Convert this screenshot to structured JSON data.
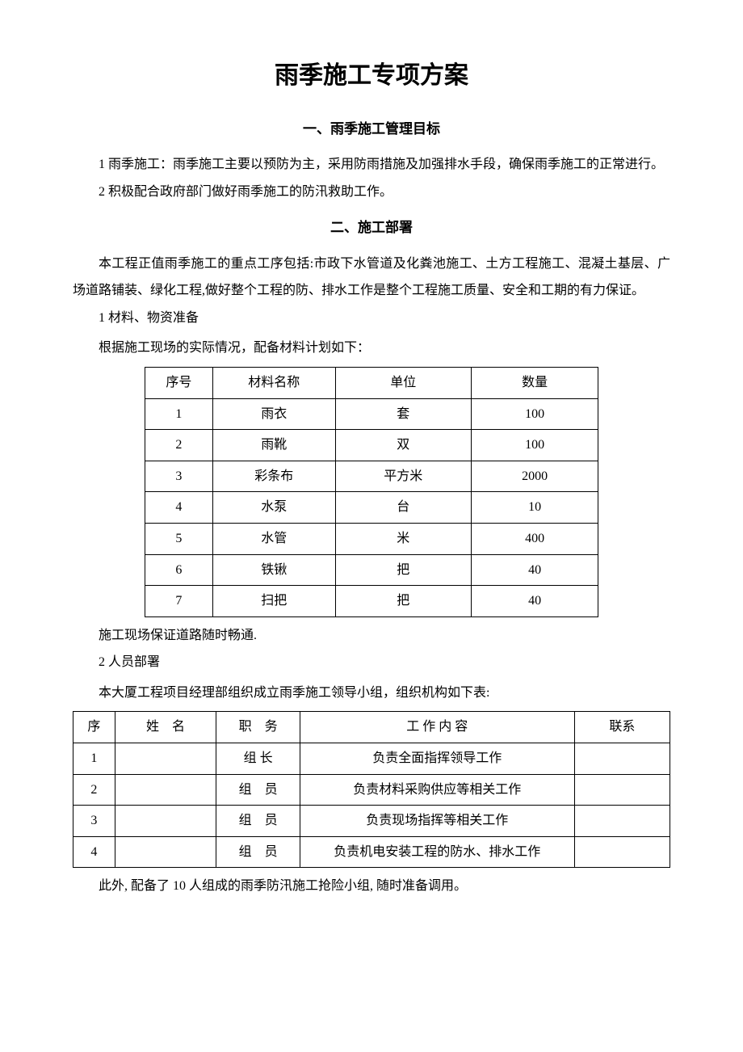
{
  "doc": {
    "title": "雨季施工专项方案",
    "section1": {
      "heading": "一、雨季施工管理目标",
      "p1": "1 雨季施工：雨季施工主要以预防为主，采用防雨措施及加强排水手段，确保雨季施工的正常进行。",
      "p2": "2 积极配合政府部门做好雨季施工的防汛救助工作。"
    },
    "section2": {
      "heading": "二、施工部署",
      "p1": "本工程正值雨季施工的重点工序包括:市政下水管道及化粪池施工、土方工程施工、混凝土基层、广场道路铺装、绿化工程,做好整个工程的防、排水工作是整个工程施工质量、安全和工期的有力保证。",
      "sub1": "1 材料、物资准备",
      "sub1_caption": "根据施工现场的实际情况，配备材料计划如下：",
      "materials": {
        "headers": [
          "序号",
          "材料名称",
          "单位",
          "数量"
        ],
        "rows": [
          [
            "1",
            "雨衣",
            "套",
            "100"
          ],
          [
            "2",
            "雨靴",
            "双",
            "100"
          ],
          [
            "3",
            "彩条布",
            "平方米",
            "2000"
          ],
          [
            "4",
            "水泵",
            "台",
            "10"
          ],
          [
            "5",
            "水管",
            "米",
            "400"
          ],
          [
            "6",
            "铁锹",
            "把",
            "40"
          ],
          [
            "7",
            "扫把",
            "把",
            "40"
          ]
        ]
      },
      "sub1_after": "施工现场保证道路随时畅通.",
      "sub2": "2 人员部署",
      "sub2_caption": "本大厦工程项目经理部组织成立雨季施工领导小组，组织机构如下表:",
      "personnel": {
        "headers": [
          "序",
          "姓　名",
          "职　务",
          "工 作 内 容",
          "联系"
        ],
        "rows": [
          [
            "1",
            "",
            "组 长",
            "负责全面指挥领导工作",
            ""
          ],
          [
            "2",
            "",
            "组　员",
            "负责材料采购供应等相关工作",
            ""
          ],
          [
            "3",
            "",
            "组　员",
            "负责现场指挥等相关工作",
            ""
          ],
          [
            "4",
            "",
            "组　员",
            "负责机电安装工程的防水、排水工作",
            ""
          ]
        ]
      },
      "sub2_after": "此外, 配备了 10 人组成的雨季防汛施工抢险小组, 随时准备调用。"
    }
  }
}
